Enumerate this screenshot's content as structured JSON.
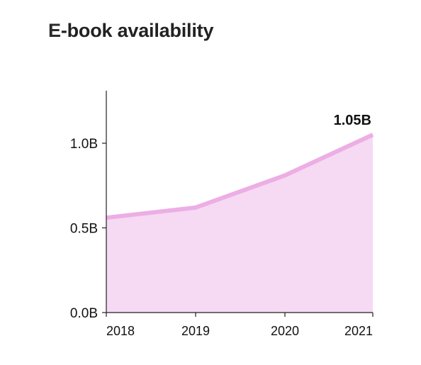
{
  "title": "E-book availability",
  "chart_data": {
    "type": "area",
    "title": "E-book availability",
    "xlabel": "",
    "ylabel": "",
    "x": [
      "2018",
      "2019",
      "2020",
      "2021"
    ],
    "series": [
      {
        "values": [
          0.56,
          0.62,
          0.81,
          1.05
        ]
      }
    ],
    "x_tick_labels": [
      "2018",
      "2019",
      "2020",
      "2021"
    ],
    "y_ticks": [
      0.0,
      0.5,
      1.0
    ],
    "y_tick_labels": [
      "0.0B",
      "0.5B",
      "1.0B"
    ],
    "ylim": [
      0,
      1.31
    ],
    "last_value_label": "1.05B",
    "grid": false,
    "legend": "none",
    "colors": {
      "fill": "#f6d9f3",
      "line": "#ecaee4",
      "axis": "#222222"
    }
  }
}
